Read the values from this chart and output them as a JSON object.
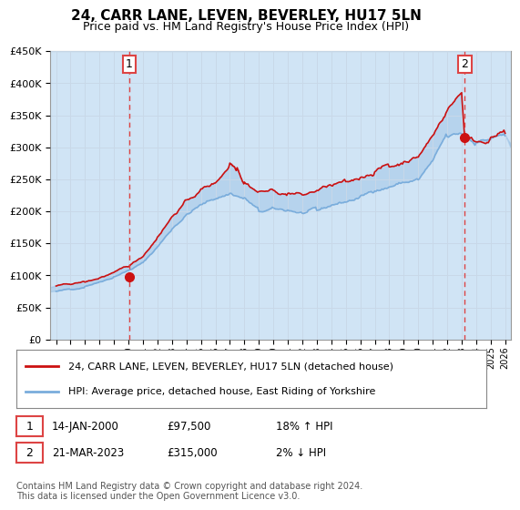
{
  "title": "24, CARR LANE, LEVEN, BEVERLEY, HU17 5LN",
  "subtitle": "Price paid vs. HM Land Registry's House Price Index (HPI)",
  "title_fontsize": 11,
  "subtitle_fontsize": 9,
  "ylabel_ticks": [
    "£0",
    "£50K",
    "£100K",
    "£150K",
    "£200K",
    "£250K",
    "£300K",
    "£350K",
    "£400K",
    "£450K"
  ],
  "ytick_values": [
    0,
    50000,
    100000,
    150000,
    200000,
    250000,
    300000,
    350000,
    400000,
    450000
  ],
  "ylim": [
    0,
    450000
  ],
  "xlim_start": 1994.6,
  "xlim_end": 2026.4,
  "xtick_years": [
    1995,
    1996,
    1997,
    1998,
    1999,
    2000,
    2001,
    2002,
    2003,
    2004,
    2005,
    2006,
    2007,
    2008,
    2009,
    2010,
    2011,
    2012,
    2013,
    2014,
    2015,
    2016,
    2017,
    2018,
    2019,
    2020,
    2021,
    2022,
    2023,
    2024,
    2025,
    2026
  ],
  "hpi_color": "#7aaddc",
  "hpi_fill_color": "#d0e4f5",
  "price_color": "#cc1111",
  "sale1_year": 2000.04,
  "sale1_price": 97500,
  "sale2_year": 2023.22,
  "sale2_price": 315000,
  "vline_color": "#dd4444",
  "annotation1_label": "1",
  "annotation2_label": "2",
  "legend_line1": "24, CARR LANE, LEVEN, BEVERLEY, HU17 5LN (detached house)",
  "legend_line2": "HPI: Average price, detached house, East Riding of Yorkshire",
  "table_row1": [
    "1",
    "14-JAN-2000",
    "£97,500",
    "18% ↑ HPI"
  ],
  "table_row2": [
    "2",
    "21-MAR-2023",
    "£315,000",
    "2% ↓ HPI"
  ],
  "footer": "Contains HM Land Registry data © Crown copyright and database right 2024.\nThis data is licensed under the Open Government Licence v3.0.",
  "background_color": "#ffffff",
  "grid_color": "#c8d8e8"
}
